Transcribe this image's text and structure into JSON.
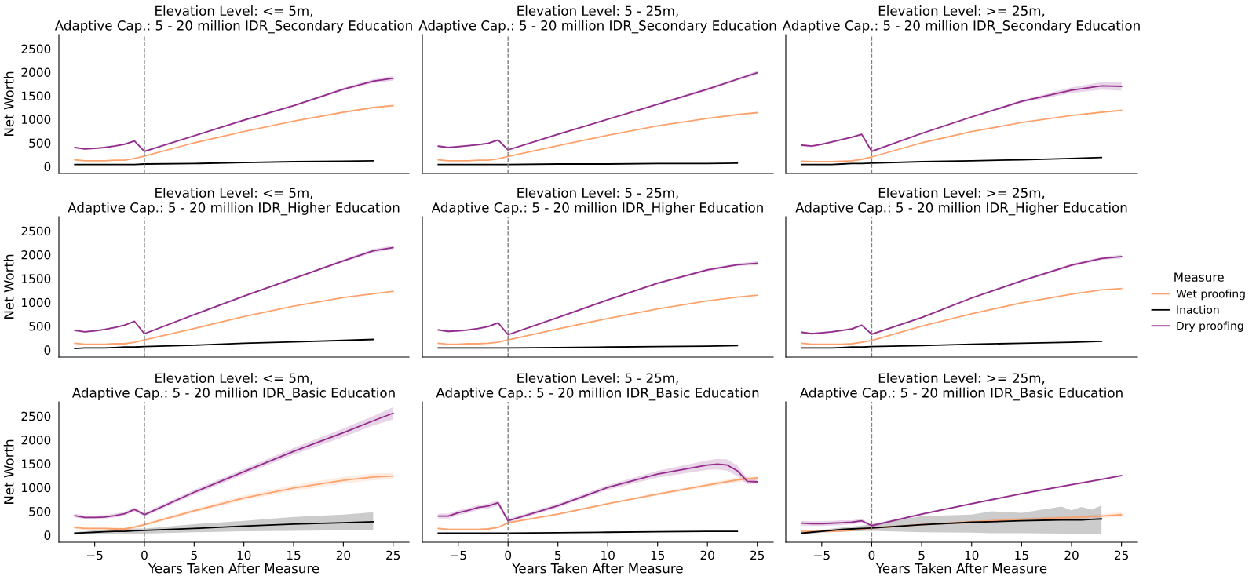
{
  "chart_data": [
    {
      "type": "line",
      "title": "Elevation Level: <= 5m,\nAdaptive Cap.: 5 - 20 million IDR_Secondary Education",
      "ylabel": "Net Worth",
      "legend_title": "Measure",
      "legend": "right",
      "xlim": [
        -8.6,
        26.6
      ],
      "ylim": [
        -150,
        2800
      ],
      "yticks": [
        0,
        500,
        1000,
        1500,
        2000,
        2500
      ],
      "tick_labels": "y",
      "grid": false,
      "ref_lines": [
        {
          "axis": "x",
          "value": 0,
          "color": "#808080",
          "line_style": "dashed"
        }
      ],
      "series": [
        {
          "name": "Wet proofing",
          "color": "#fda26c",
          "x": [
            -7,
            -6,
            -5,
            -4,
            -3,
            -2,
            -1,
            0,
            5,
            10,
            15,
            20,
            23,
            25
          ],
          "values": [
            140,
            120,
            120,
            120,
            130,
            130,
            170,
            220,
            500,
            740,
            960,
            1150,
            1250,
            1290
          ]
        },
        {
          "name": "Inaction",
          "color": "#000000",
          "x": [
            -7,
            -6,
            -5,
            -4,
            -3,
            -2,
            -1,
            0,
            5,
            10,
            15,
            20,
            23
          ],
          "values": [
            40,
            40,
            40,
            40,
            40,
            40,
            40,
            50,
            60,
            80,
            100,
            110,
            120
          ]
        },
        {
          "name": "Dry proofing",
          "color": "#922b8c",
          "x": [
            -7,
            -6,
            -5,
            -4,
            -3,
            -2,
            -1,
            0,
            5,
            10,
            15,
            20,
            23,
            25
          ],
          "values": [
            400,
            370,
            380,
            400,
            430,
            470,
            540,
            320,
            650,
            980,
            1290,
            1640,
            1810,
            1870
          ],
          "lower": [
            380,
            350,
            370,
            390,
            420,
            450,
            520,
            300,
            630,
            960,
            1270,
            1610,
            1770,
            1820
          ],
          "upper": [
            420,
            390,
            400,
            420,
            450,
            490,
            560,
            340,
            670,
            1000,
            1310,
            1670,
            1850,
            1920
          ]
        }
      ]
    },
    {
      "type": "line",
      "title": "Elevation Level: 5 - 25m,\nAdaptive Cap.: 5 - 20 million IDR_Secondary Education",
      "xlim": [
        -8.6,
        26.6
      ],
      "ylim": [
        -150,
        2800
      ],
      "yticks": [
        0,
        500,
        1000,
        1500,
        2000,
        2500
      ],
      "tick_labels": false,
      "grid": false,
      "ref_lines": [
        {
          "axis": "x",
          "value": 0,
          "color": "#808080",
          "line_style": "dashed"
        }
      ],
      "series": [
        {
          "color": "#fda26c",
          "x": [
            -7,
            -6,
            -5,
            -4,
            -3,
            -2,
            -1,
            0,
            5,
            10,
            15,
            20,
            23,
            25
          ],
          "values": [
            140,
            120,
            120,
            120,
            130,
            130,
            160,
            210,
            440,
            660,
            860,
            1020,
            1100,
            1140
          ]
        },
        {
          "color": "#000000",
          "x": [
            -7,
            -6,
            -5,
            -4,
            -3,
            -2,
            -1,
            0,
            5,
            10,
            15,
            20,
            23
          ],
          "values": [
            40,
            40,
            40,
            40,
            40,
            40,
            40,
            40,
            50,
            50,
            60,
            60,
            70
          ]
        },
        {
          "color": "#922b8c",
          "x": [
            -7,
            -6,
            -5,
            -4,
            -3,
            -2,
            -1,
            0,
            5,
            10,
            15,
            20,
            23,
            25
          ],
          "values": [
            430,
            400,
            420,
            440,
            460,
            490,
            560,
            350,
            680,
            1000,
            1320,
            1640,
            1850,
            1990
          ],
          "lower": [
            410,
            380,
            400,
            420,
            440,
            470,
            540,
            330,
            660,
            980,
            1300,
            1610,
            1820,
            1950
          ],
          "upper": [
            450,
            420,
            440,
            460,
            480,
            510,
            580,
            370,
            700,
            1020,
            1340,
            1670,
            1880,
            2030
          ]
        }
      ]
    },
    {
      "type": "line",
      "title": "Elevation Level: >= 25m,\nAdaptive Cap.: 5 - 20 million IDR_Secondary Education",
      "xlim": [
        -8.6,
        26.6
      ],
      "ylim": [
        -150,
        2800
      ],
      "yticks": [
        0,
        500,
        1000,
        1500,
        2000,
        2500
      ],
      "tick_labels": false,
      "grid": false,
      "ref_lines": [
        {
          "axis": "x",
          "value": 0,
          "color": "#808080",
          "line_style": "dashed"
        }
      ],
      "series": [
        {
          "color": "#fda26c",
          "x": [
            -7,
            -6,
            -5,
            -4,
            -3,
            -2,
            -1,
            0,
            5,
            10,
            15,
            20,
            23,
            25
          ],
          "values": [
            110,
            100,
            100,
            100,
            110,
            120,
            150,
            200,
            500,
            740,
            930,
            1080,
            1150,
            1190
          ]
        },
        {
          "color": "#000000",
          "x": [
            -7,
            -6,
            -5,
            -4,
            -3,
            -2,
            -1,
            0,
            5,
            10,
            15,
            20,
            23
          ],
          "values": [
            40,
            40,
            40,
            40,
            50,
            60,
            60,
            70,
            100,
            120,
            140,
            170,
            190
          ]
        },
        {
          "color": "#922b8c",
          "x": [
            -7,
            -6,
            -5,
            -4,
            -3,
            -2,
            -1,
            0,
            5,
            10,
            15,
            20,
            23,
            25
          ],
          "values": [
            450,
            430,
            470,
            520,
            570,
            620,
            680,
            320,
            700,
            1050,
            1380,
            1620,
            1710,
            1700
          ],
          "lower": [
            420,
            410,
            450,
            500,
            550,
            600,
            660,
            300,
            680,
            1030,
            1350,
            1560,
            1630,
            1610
          ],
          "upper": [
            480,
            450,
            490,
            540,
            590,
            640,
            700,
            340,
            720,
            1070,
            1410,
            1680,
            1790,
            1790
          ]
        }
      ]
    },
    {
      "type": "line",
      "title": "Elevation Level: <= 5m,\nAdaptive Cap.: 5 - 20 million IDR_Higher Education",
      "ylabel": "Net Worth",
      "xlim": [
        -8.6,
        26.6
      ],
      "ylim": [
        -150,
        2800
      ],
      "yticks": [
        0,
        500,
        1000,
        1500,
        2000,
        2500
      ],
      "tick_labels": "y",
      "grid": false,
      "ref_lines": [
        {
          "axis": "x",
          "value": 0,
          "color": "#808080",
          "line_style": "dashed"
        }
      ],
      "series": [
        {
          "color": "#fda26c",
          "x": [
            -7,
            -6,
            -5,
            -4,
            -3,
            -2,
            -1,
            0,
            5,
            10,
            15,
            20,
            23,
            25
          ],
          "values": [
            140,
            120,
            120,
            120,
            130,
            130,
            160,
            210,
            450,
            700,
            920,
            1100,
            1180,
            1230
          ]
        },
        {
          "color": "#000000",
          "x": [
            -7,
            -6,
            -5,
            -4,
            -3,
            -2,
            -1,
            0,
            5,
            10,
            15,
            20,
            23
          ],
          "values": [
            30,
            40,
            40,
            40,
            50,
            60,
            60,
            70,
            100,
            140,
            170,
            200,
            220
          ]
        },
        {
          "color": "#922b8c",
          "x": [
            -7,
            -6,
            -5,
            -4,
            -3,
            -2,
            -1,
            0,
            5,
            10,
            15,
            20,
            23,
            25
          ],
          "values": [
            410,
            380,
            400,
            430,
            470,
            520,
            600,
            340,
            740,
            1130,
            1500,
            1870,
            2080,
            2150
          ],
          "lower": [
            390,
            360,
            380,
            410,
            450,
            500,
            580,
            320,
            720,
            1110,
            1480,
            1840,
            2040,
            2110
          ],
          "upper": [
            430,
            400,
            420,
            450,
            490,
            540,
            620,
            360,
            760,
            1150,
            1520,
            1900,
            2120,
            2190
          ]
        }
      ]
    },
    {
      "type": "line",
      "title": "Elevation Level: 5 - 25m,\nAdaptive Cap.: 5 - 20 million IDR_Higher Education",
      "xlim": [
        -8.6,
        26.6
      ],
      "ylim": [
        -150,
        2800
      ],
      "yticks": [
        0,
        500,
        1000,
        1500,
        2000,
        2500
      ],
      "tick_labels": false,
      "grid": false,
      "ref_lines": [
        {
          "axis": "x",
          "value": 0,
          "color": "#808080",
          "line_style": "dashed"
        }
      ],
      "series": [
        {
          "color": "#fda26c",
          "x": [
            -7,
            -6,
            -5,
            -4,
            -3,
            -2,
            -1,
            0,
            5,
            10,
            15,
            20,
            23,
            25
          ],
          "values": [
            140,
            120,
            120,
            130,
            130,
            140,
            160,
            210,
            440,
            660,
            860,
            1030,
            1110,
            1150
          ]
        },
        {
          "color": "#000000",
          "x": [
            -7,
            -6,
            -5,
            -4,
            -3,
            -2,
            -1,
            0,
            5,
            10,
            15,
            20,
            23
          ],
          "values": [
            40,
            40,
            40,
            40,
            40,
            40,
            40,
            40,
            50,
            60,
            70,
            80,
            90
          ]
        },
        {
          "color": "#922b8c",
          "x": [
            -7,
            -6,
            -5,
            -4,
            -3,
            -2,
            -1,
            0,
            5,
            10,
            15,
            20,
            23,
            25
          ],
          "values": [
            420,
            390,
            400,
            420,
            450,
            490,
            570,
            320,
            680,
            1050,
            1400,
            1680,
            1790,
            1820
          ],
          "lower": [
            400,
            370,
            380,
            400,
            430,
            470,
            550,
            300,
            660,
            1030,
            1380,
            1650,
            1760,
            1780
          ],
          "upper": [
            440,
            410,
            420,
            440,
            470,
            510,
            590,
            340,
            700,
            1070,
            1420,
            1710,
            1820,
            1860
          ]
        }
      ]
    },
    {
      "type": "line",
      "title": "Elevation Level: >= 25m,\nAdaptive Cap.: 5 - 20 million IDR_Higher Education",
      "xlim": [
        -8.6,
        26.6
      ],
      "ylim": [
        -150,
        2800
      ],
      "yticks": [
        0,
        500,
        1000,
        1500,
        2000,
        2500
      ],
      "tick_labels": false,
      "grid": false,
      "ref_lines": [
        {
          "axis": "x",
          "value": 0,
          "color": "#808080",
          "line_style": "dashed"
        }
      ],
      "series": [
        {
          "color": "#fda26c",
          "x": [
            -7,
            -6,
            -5,
            -4,
            -3,
            -2,
            -1,
            0,
            5,
            10,
            15,
            20,
            23,
            25
          ],
          "values": [
            140,
            120,
            120,
            120,
            120,
            130,
            160,
            200,
            500,
            760,
            990,
            1170,
            1260,
            1290
          ]
        },
        {
          "color": "#000000",
          "x": [
            -7,
            -6,
            -5,
            -4,
            -3,
            -2,
            -1,
            0,
            5,
            10,
            15,
            20,
            23
          ],
          "values": [
            40,
            40,
            40,
            40,
            50,
            60,
            60,
            70,
            90,
            120,
            140,
            160,
            180
          ]
        },
        {
          "color": "#922b8c",
          "x": [
            -7,
            -6,
            -5,
            -4,
            -3,
            -2,
            -1,
            0,
            5,
            10,
            15,
            20,
            23,
            25
          ],
          "values": [
            370,
            340,
            360,
            380,
            410,
            440,
            520,
            330,
            680,
            1090,
            1450,
            1780,
            1920,
            1960
          ],
          "lower": [
            350,
            320,
            340,
            360,
            390,
            420,
            500,
            310,
            660,
            1070,
            1430,
            1750,
            1890,
            1920
          ],
          "upper": [
            390,
            360,
            380,
            400,
            430,
            460,
            540,
            350,
            700,
            1110,
            1470,
            1810,
            1950,
            2000
          ]
        }
      ]
    },
    {
      "type": "line",
      "title": "Elevation Level: <= 5m,\nAdaptive Cap.: 5 - 20 million IDR_Basic Education",
      "xlabel": "Years Taken After Measure",
      "ylabel": "Net Worth",
      "xlim": [
        -8.6,
        26.6
      ],
      "xticks": [
        -5,
        0,
        5,
        10,
        15,
        20,
        25
      ],
      "ylim": [
        -150,
        2800
      ],
      "yticks": [
        0,
        500,
        1000,
        1500,
        2000,
        2500
      ],
      "grid": false,
      "ref_lines": [
        {
          "axis": "x",
          "value": 0,
          "color": "#808080",
          "line_style": "dashed"
        }
      ],
      "series": [
        {
          "color": "#fda26c",
          "x": [
            -7,
            -6,
            -5,
            -4,
            -3,
            -2,
            -1,
            0,
            5,
            10,
            15,
            20,
            23,
            25
          ],
          "values": [
            160,
            140,
            140,
            140,
            130,
            130,
            170,
            220,
            510,
            780,
            990,
            1150,
            1220,
            1240
          ],
          "lower": [
            130,
            110,
            110,
            110,
            110,
            100,
            140,
            190,
            470,
            730,
            930,
            1080,
            1150,
            1170
          ],
          "upper": [
            190,
            170,
            170,
            170,
            160,
            160,
            200,
            250,
            550,
            830,
            1050,
            1220,
            1290,
            1310
          ]
        },
        {
          "color": "#000000",
          "x": [
            -7,
            -6,
            -5,
            -4,
            -3,
            -2,
            -1,
            0,
            5,
            10,
            15,
            20,
            23
          ],
          "values": [
            40,
            50,
            60,
            70,
            80,
            80,
            90,
            100,
            140,
            190,
            230,
            260,
            280
          ],
          "lower": [
            20,
            20,
            30,
            30,
            30,
            30,
            30,
            30,
            60,
            80,
            90,
            100,
            110
          ],
          "upper": [
            60,
            80,
            100,
            110,
            120,
            130,
            140,
            140,
            230,
            300,
            380,
            430,
            480
          ]
        },
        {
          "color": "#922b8c",
          "x": [
            -7,
            -6,
            -5,
            -4,
            -3,
            -2,
            -1,
            0,
            5,
            10,
            15,
            20,
            23,
            25
          ],
          "values": [
            410,
            370,
            370,
            380,
            410,
            450,
            540,
            430,
            900,
            1330,
            1760,
            2150,
            2400,
            2560
          ],
          "lower": [
            370,
            330,
            330,
            350,
            370,
            410,
            500,
            390,
            850,
            1270,
            1690,
            2060,
            2300,
            2430
          ],
          "upper": [
            450,
            410,
            410,
            420,
            450,
            490,
            580,
            470,
            950,
            1390,
            1830,
            2240,
            2500,
            2690
          ]
        }
      ]
    },
    {
      "type": "line",
      "title": "Elevation Level: 5 - 25m,\nAdaptive Cap.: 5 - 20 million IDR_Basic Education",
      "xlabel": "Years Taken After Measure",
      "xlim": [
        -8.6,
        26.6
      ],
      "xticks": [
        -5,
        0,
        5,
        10,
        15,
        20,
        25
      ],
      "ylim": [
        -150,
        2800
      ],
      "yticks": [
        0,
        500,
        1000,
        1500,
        2000,
        2500
      ],
      "tick_labels": "x",
      "grid": false,
      "ref_lines": [
        {
          "axis": "x",
          "value": 0,
          "color": "#808080",
          "line_style": "dashed"
        }
      ],
      "series": [
        {
          "color": "#fda26c",
          "x": [
            -7,
            -6,
            -5,
            -4,
            -3,
            -2,
            -1,
            0,
            5,
            10,
            15,
            20,
            23,
            25
          ],
          "values": [
            140,
            120,
            120,
            120,
            120,
            130,
            160,
            260,
            440,
            660,
            860,
            1050,
            1160,
            1200
          ],
          "lower": [
            120,
            100,
            100,
            100,
            110,
            110,
            150,
            240,
            420,
            640,
            830,
            1010,
            1110,
            1150
          ],
          "upper": [
            160,
            140,
            140,
            140,
            140,
            150,
            180,
            280,
            460,
            680,
            890,
            1090,
            1210,
            1250
          ]
        },
        {
          "color": "#000000",
          "x": [
            -7,
            -6,
            -5,
            -4,
            -3,
            -2,
            -1,
            0,
            5,
            10,
            15,
            20,
            23
          ],
          "values": [
            40,
            40,
            40,
            40,
            40,
            40,
            40,
            40,
            50,
            60,
            70,
            80,
            80
          ]
        },
        {
          "color": "#922b8c",
          "x": [
            -7,
            -6,
            -5,
            -4,
            -3,
            -2,
            -1,
            0,
            5,
            10,
            15,
            20,
            21,
            22,
            23,
            24,
            25
          ],
          "values": [
            400,
            400,
            470,
            520,
            580,
            610,
            680,
            300,
            620,
            1000,
            1280,
            1470,
            1490,
            1470,
            1350,
            1130,
            1120
          ],
          "lower": [
            350,
            350,
            420,
            470,
            530,
            560,
            620,
            260,
            580,
            950,
            1210,
            1370,
            1380,
            1350,
            1240,
            1070,
            1080
          ],
          "upper": [
            450,
            450,
            520,
            570,
            630,
            660,
            740,
            340,
            660,
            1050,
            1350,
            1570,
            1600,
            1590,
            1460,
            1190,
            1160
          ]
        }
      ]
    },
    {
      "type": "line",
      "title": "Elevation Level: >= 25m,\nAdaptive Cap.: 5 - 20 million IDR_Basic Education",
      "xlabel": "Years Taken After Measure",
      "xlim": [
        -8.6,
        26.6
      ],
      "xticks": [
        -5,
        0,
        5,
        10,
        15,
        20,
        25
      ],
      "ylim": [
        -150,
        2800
      ],
      "yticks": [
        0,
        500,
        1000,
        1500,
        2000,
        2500
      ],
      "tick_labels": "x",
      "grid": false,
      "ref_lines": [
        {
          "axis": "x",
          "value": 0,
          "color": "#808080",
          "line_style": "dashed"
        }
      ],
      "series": [
        {
          "color": "#fda26c",
          "x": [
            -7,
            -6,
            -5,
            -4,
            -3,
            -2,
            -1,
            0,
            5,
            10,
            15,
            20,
            23,
            25
          ],
          "values": [
            80,
            80,
            80,
            80,
            90,
            100,
            120,
            150,
            220,
            280,
            330,
            370,
            400,
            430
          ],
          "lower": [
            60,
            60,
            60,
            60,
            70,
            80,
            100,
            130,
            200,
            250,
            300,
            340,
            360,
            380
          ],
          "upper": [
            100,
            100,
            100,
            100,
            110,
            120,
            140,
            170,
            240,
            300,
            360,
            400,
            440,
            480
          ]
        },
        {
          "color": "#000000",
          "x": [
            -7,
            -6,
            -5,
            -4,
            -3,
            -2,
            -1,
            0,
            5,
            10,
            12,
            15,
            19,
            20,
            21,
            22,
            23
          ],
          "values": [
            40,
            60,
            80,
            100,
            120,
            130,
            140,
            150,
            220,
            270,
            280,
            300,
            320,
            320,
            320,
            330,
            340
          ],
          "lower": [
            10,
            30,
            50,
            60,
            70,
            80,
            80,
            90,
            60,
            50,
            40,
            40,
            30,
            30,
            30,
            20,
            20
          ],
          "upper": [
            70,
            90,
            110,
            140,
            160,
            180,
            200,
            230,
            400,
            430,
            500,
            470,
            600,
            520,
            590,
            540,
            620
          ]
        },
        {
          "color": "#922b8c",
          "x": [
            -7,
            -6,
            -5,
            -4,
            -3,
            -2,
            -1,
            0,
            5,
            10,
            15,
            20,
            23,
            25
          ],
          "values": [
            250,
            240,
            240,
            250,
            260,
            270,
            300,
            200,
            440,
            660,
            870,
            1060,
            1170,
            1250
          ],
          "lower": [
            200,
            190,
            190,
            200,
            210,
            230,
            260,
            170,
            420,
            640,
            850,
            1040,
            1150,
            1230
          ],
          "upper": [
            300,
            290,
            290,
            300,
            310,
            310,
            340,
            230,
            460,
            680,
            890,
            1080,
            1190,
            1270
          ]
        }
      ]
    }
  ]
}
